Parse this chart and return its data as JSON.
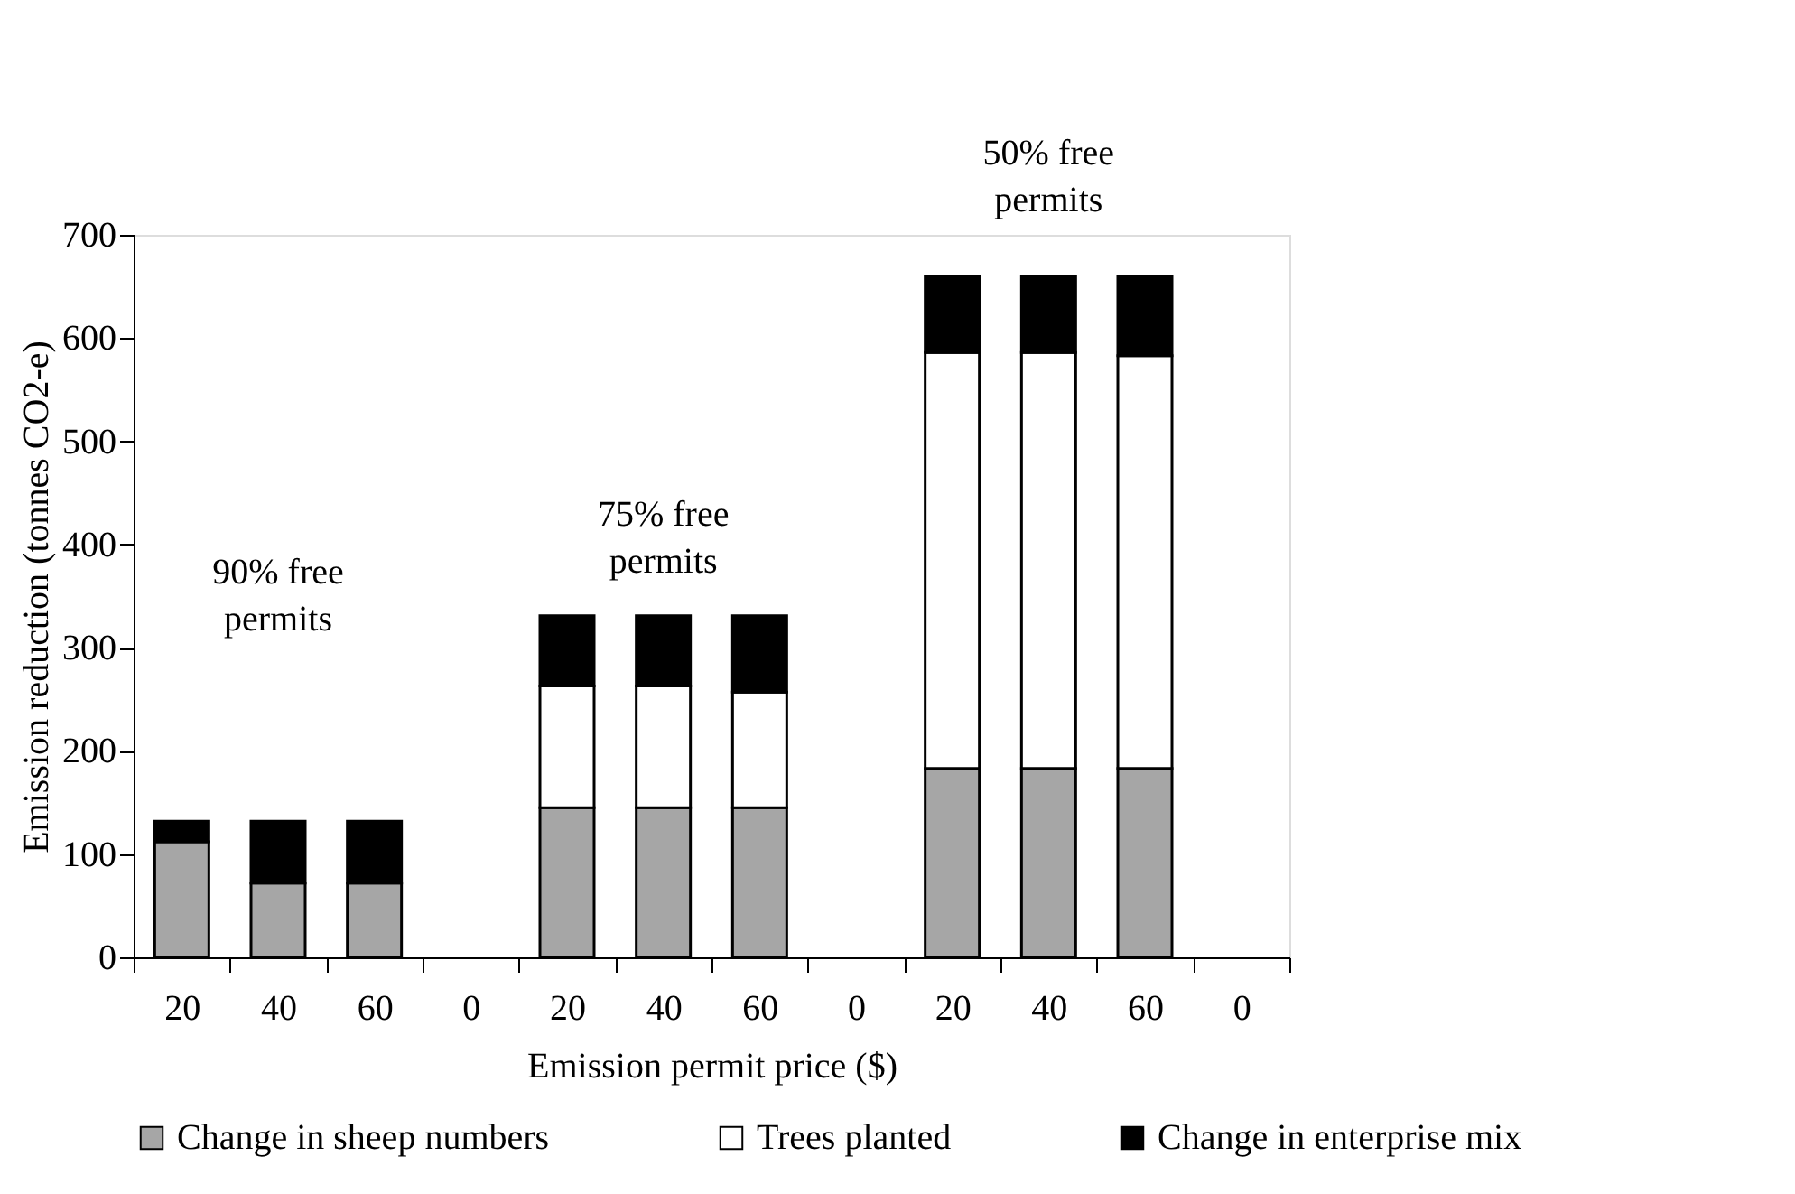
{
  "chart_data": {
    "type": "bar",
    "stacked": true,
    "xlabel": "Emission permit price ($)",
    "ylabel": "Emission reduction (tonnes CO2-e)",
    "categories": [
      "20",
      "40",
      "60",
      "0",
      "20",
      "40",
      "60",
      "0",
      "20",
      "40",
      "60",
      "0"
    ],
    "series": [
      {
        "name": "Change in sheep numbers",
        "color": "#a6a6a6",
        "values": [
          112,
          72,
          72,
          null,
          145,
          145,
          145,
          null,
          183,
          183,
          183,
          null
        ]
      },
      {
        "name": "Trees planted",
        "color": "#ffffff",
        "values": [
          null,
          null,
          null,
          null,
          118,
          118,
          112,
          null,
          403,
          403,
          400,
          null
        ]
      },
      {
        "name": "Change in enterprise mix",
        "color": "#000000",
        "values": [
          20,
          60,
          60,
          null,
          68,
          68,
          74,
          null,
          74,
          74,
          77,
          null
        ]
      }
    ],
    "ylim": [
      0,
      700
    ],
    "yticks": [
      0,
      100,
      200,
      300,
      400,
      500,
      600,
      700
    ],
    "grid": false,
    "legend": "bottom",
    "annotations": [
      "90% free permits",
      "75% free permits",
      "50% free permits"
    ]
  }
}
